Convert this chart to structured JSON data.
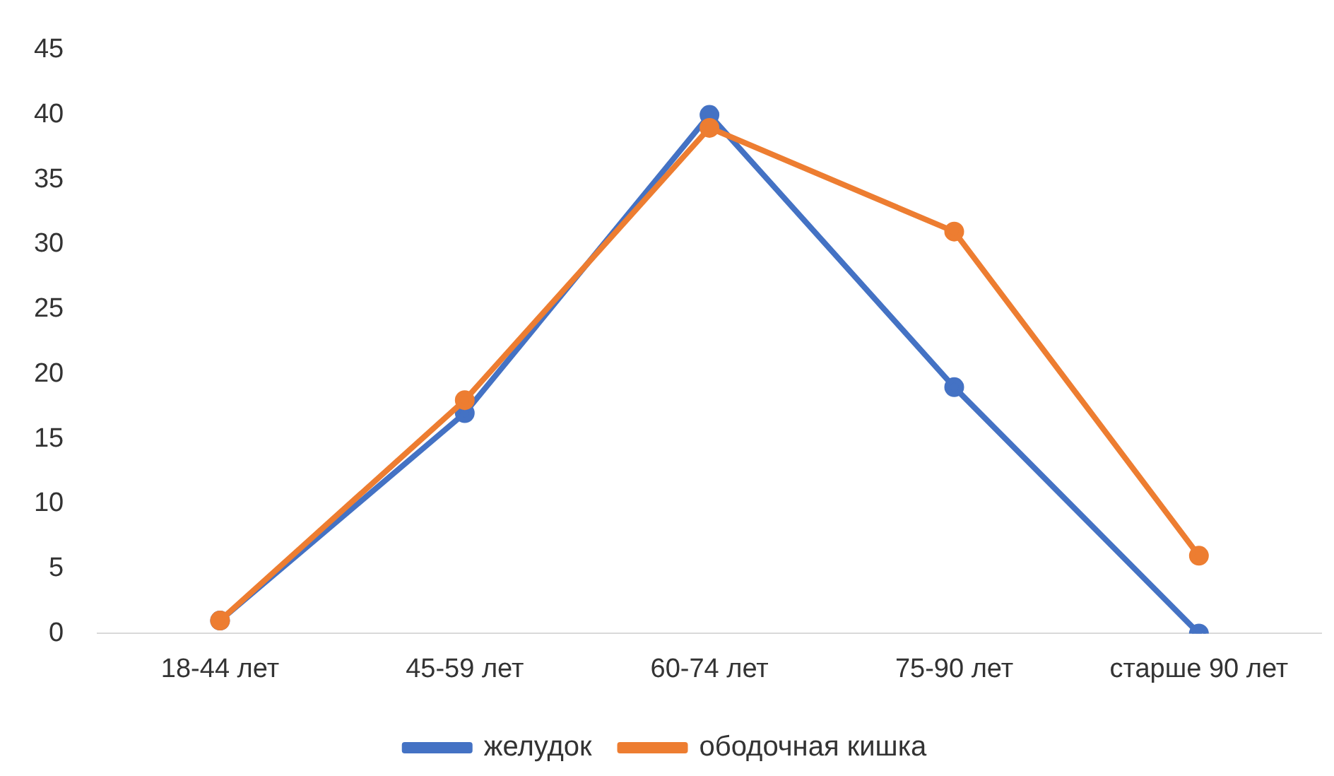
{
  "chart_data": {
    "type": "line",
    "categories": [
      "18-44 лет",
      "45-59 лет",
      "60-74 лет",
      "75-90 лет",
      "старше 90 лет"
    ],
    "series": [
      {
        "name": "желудок",
        "color": "#4472c4",
        "values": [
          1,
          17,
          40,
          19,
          0
        ]
      },
      {
        "name": "ободочная кишка",
        "color": "#ed7d31",
        "values": [
          1,
          18,
          39,
          31,
          6
        ]
      }
    ],
    "ylim": [
      0,
      45
    ],
    "yticks": [
      0,
      5,
      10,
      15,
      20,
      25,
      30,
      35,
      40,
      45
    ],
    "grid": false,
    "legend": "bottom",
    "marker": "circle",
    "line_style": "solid"
  }
}
